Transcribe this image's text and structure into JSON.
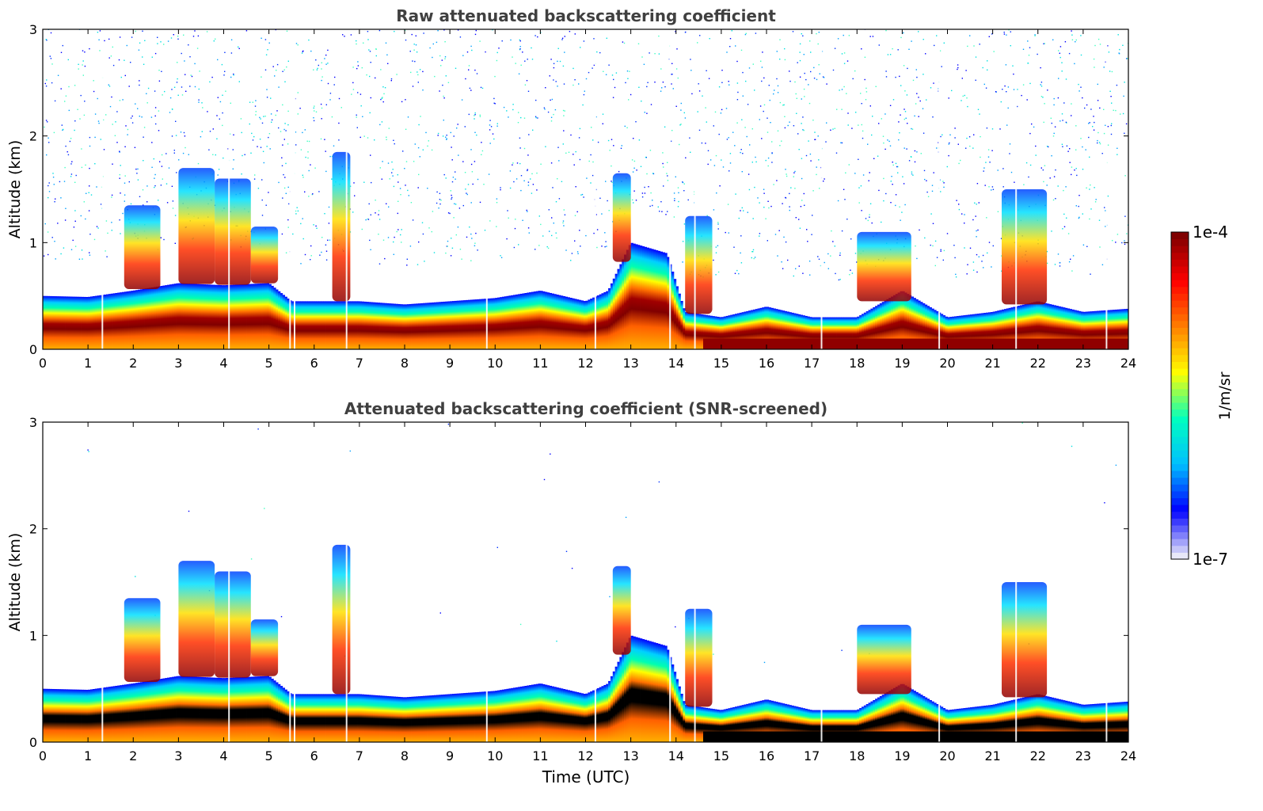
{
  "chart_data": [
    {
      "type": "heatmap",
      "title": "Raw attenuated backscattering coefficient",
      "xlabel": "",
      "ylabel": "Altitude (km)",
      "xlim": [
        0,
        24
      ],
      "ylim": [
        0,
        3
      ],
      "xticks": [
        "0",
        "1",
        "2",
        "3",
        "4",
        "5",
        "6",
        "7",
        "8",
        "9",
        "10",
        "11",
        "12",
        "13",
        "14",
        "15",
        "16",
        "17",
        "18",
        "19",
        "20",
        "21",
        "22",
        "23",
        "24"
      ],
      "yticks": [
        "0",
        "1",
        "2",
        "3"
      ],
      "boundary_layer_top_km": [
        [
          0,
          0.5
        ],
        [
          1,
          0.49
        ],
        [
          2,
          0.55
        ],
        [
          3,
          0.62
        ],
        [
          4,
          0.6
        ],
        [
          5,
          0.62
        ],
        [
          5.5,
          0.45
        ],
        [
          7,
          0.45
        ],
        [
          8,
          0.42
        ],
        [
          9,
          0.45
        ],
        [
          10,
          0.48
        ],
        [
          11,
          0.55
        ],
        [
          12,
          0.45
        ],
        [
          12.5,
          0.55
        ],
        [
          13,
          1.0
        ],
        [
          13.8,
          0.9
        ],
        [
          14.2,
          0.35
        ],
        [
          15,
          0.3
        ],
        [
          16,
          0.4
        ],
        [
          17,
          0.3
        ],
        [
          18,
          0.3
        ],
        [
          19,
          0.55
        ],
        [
          20,
          0.3
        ],
        [
          21,
          0.35
        ],
        [
          22,
          0.45
        ],
        [
          23,
          0.35
        ],
        [
          24,
          0.38
        ]
      ],
      "cloud_features": [
        {
          "t_start": 1.8,
          "t_end": 2.6,
          "alt_top_km": 1.35
        },
        {
          "t_start": 3.0,
          "t_end": 3.8,
          "alt_top_km": 1.7
        },
        {
          "t_start": 3.8,
          "t_end": 4.6,
          "alt_top_km": 1.6
        },
        {
          "t_start": 4.6,
          "t_end": 5.2,
          "alt_top_km": 1.15
        },
        {
          "t_start": 6.4,
          "t_end": 6.8,
          "alt_top_km": 1.85
        },
        {
          "t_start": 12.6,
          "t_end": 13.0,
          "alt_top_km": 1.65
        },
        {
          "t_start": 14.2,
          "t_end": 14.8,
          "alt_top_km": 1.25
        },
        {
          "t_start": 18.0,
          "t_end": 19.2,
          "alt_top_km": 1.1
        },
        {
          "t_start": 21.2,
          "t_end": 22.2,
          "alt_top_km": 1.5
        }
      ]
    },
    {
      "type": "heatmap",
      "title": "Attenuated backscattering coefficient (SNR-screened)",
      "xlabel": "Time (UTC)",
      "ylabel": "Altitude (km)",
      "xlim": [
        0,
        24
      ],
      "ylim": [
        0,
        3
      ],
      "xticks": [
        "0",
        "1",
        "2",
        "3",
        "4",
        "5",
        "6",
        "7",
        "8",
        "9",
        "10",
        "11",
        "12",
        "13",
        "14",
        "15",
        "16",
        "17",
        "18",
        "19",
        "20",
        "21",
        "22",
        "23",
        "24"
      ],
      "yticks": [
        "0",
        "1",
        "2",
        "3"
      ]
    }
  ],
  "colorbar": {
    "label": "1/m/sr",
    "max_label": "1e-4",
    "min_label": "1e-7",
    "colors": [
      "#e8e8f8",
      "#0000ff",
      "#00bfff",
      "#00ffbf",
      "#ffff00",
      "#ff8000",
      "#ff0000",
      "#800000"
    ]
  }
}
